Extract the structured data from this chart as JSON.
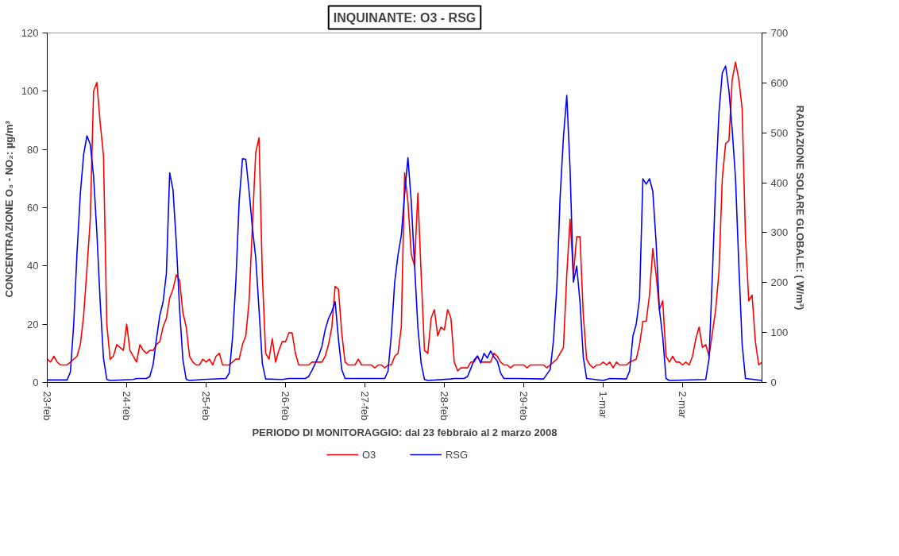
{
  "chart_data": {
    "type": "line",
    "title": "INQUINANTE: O3 - RSG",
    "xlabel": "PERIODO DI MONITORAGGIO: dal 23 febbraio al 2 marzo 2008",
    "ylabel": "CONCENTRAZIONE O₃ -  NO₂: µg/m³",
    "y2label": "RADIAZIONE SOLARE GLOBALE: ( W/m³)",
    "xlim": [
      "2008-02-23T00:00",
      "2008-03-03T00:00"
    ],
    "xticks": [
      {
        "value": "2008-02-23",
        "label": "23-feb"
      },
      {
        "value": "2008-02-24",
        "label": "24-feb"
      },
      {
        "value": "2008-02-25",
        "label": "25-feb"
      },
      {
        "value": "2008-02-26",
        "label": "26-feb"
      },
      {
        "value": "2008-02-27",
        "label": "27-feb"
      },
      {
        "value": "2008-02-28",
        "label": "28-feb"
      },
      {
        "value": "2008-02-29",
        "label": "29-feb"
      },
      {
        "value": "2008-03-01",
        "label": "1-mar"
      },
      {
        "value": "2008-03-02",
        "label": "2-mar"
      }
    ],
    "ylim": [
      0,
      120
    ],
    "yticks": [
      0,
      20,
      40,
      60,
      80,
      100,
      120
    ],
    "y2lim": [
      0,
      700
    ],
    "y2ticks": [
      0,
      100,
      200,
      300,
      400,
      500,
      600,
      700
    ],
    "grid": false,
    "legend": "bottom",
    "marker": "none",
    "line_style": "solid",
    "series": [
      {
        "name": "O3",
        "color": "#ff0000",
        "x": [
          "2008-02-23T00:00",
          "2008-02-23T01:00",
          "2008-02-23T02:00",
          "2008-02-23T03:00",
          "2008-02-23T04:00",
          "2008-02-23T06:00",
          "2008-02-23T07:00",
          "2008-02-23T09:00",
          "2008-02-23T10:00",
          "2008-02-23T11:00",
          "2008-02-23T12:00",
          "2008-02-23T13:00",
          "2008-02-23T14:00",
          "2008-02-23T15:00",
          "2008-02-23T16:00",
          "2008-02-23T17:00",
          "2008-02-23T18:00",
          "2008-02-23T19:00",
          "2008-02-23T20:00",
          "2008-02-23T21:00",
          "2008-02-23T23:00",
          "2008-02-24T00:00",
          "2008-02-24T01:00",
          "2008-02-24T03:00",
          "2008-02-24T04:00",
          "2008-02-24T05:00",
          "2008-02-24T06:00",
          "2008-02-24T07:00",
          "2008-02-24T08:00",
          "2008-02-24T09:00",
          "2008-02-24T10:00",
          "2008-02-24T11:00",
          "2008-02-24T12:00",
          "2008-02-24T13:00",
          "2008-02-24T14:00",
          "2008-02-24T15:00",
          "2008-02-24T16:00",
          "2008-02-24T17:00",
          "2008-02-24T18:00",
          "2008-02-24T19:00",
          "2008-02-24T20:00",
          "2008-02-24T21:00",
          "2008-02-24T22:00",
          "2008-02-24T23:00",
          "2008-02-25T00:00",
          "2008-02-25T01:00",
          "2008-02-25T02:00",
          "2008-02-25T03:00",
          "2008-02-25T04:00",
          "2008-02-25T05:00",
          "2008-02-25T07:00",
          "2008-02-25T09:00",
          "2008-02-25T10:00",
          "2008-02-25T11:00",
          "2008-02-25T12:00",
          "2008-02-25T13:00",
          "2008-02-25T14:00",
          "2008-02-25T15:00",
          "2008-02-25T16:00",
          "2008-02-25T17:00",
          "2008-02-25T18:00",
          "2008-02-25T19:00",
          "2008-02-25T20:00",
          "2008-02-25T21:00",
          "2008-02-25T22:00",
          "2008-02-25T23:00",
          "2008-02-26T00:00",
          "2008-02-26T01:00",
          "2008-02-26T02:00",
          "2008-02-26T03:00",
          "2008-02-26T04:00",
          "2008-02-26T07:00",
          "2008-02-26T08:00",
          "2008-02-26T11:00",
          "2008-02-26T12:00",
          "2008-02-26T13:00",
          "2008-02-26T14:00",
          "2008-02-26T15:00",
          "2008-02-26T16:00",
          "2008-02-26T17:00",
          "2008-02-26T18:00",
          "2008-02-26T19:00",
          "2008-02-26T21:00",
          "2008-02-26T22:00",
          "2008-02-26T23:00",
          "2008-02-27T02:00",
          "2008-02-27T03:00",
          "2008-02-27T04:00",
          "2008-02-27T05:00",
          "2008-02-27T06:00",
          "2008-02-27T07:00",
          "2008-02-27T08:00",
          "2008-02-27T09:00",
          "2008-02-27T10:00",
          "2008-02-27T11:00",
          "2008-02-27T12:00",
          "2008-02-27T13:00",
          "2008-02-27T14:00",
          "2008-02-27T15:00",
          "2008-02-27T16:00",
          "2008-02-27T17:00",
          "2008-02-27T18:00",
          "2008-02-27T19:00",
          "2008-02-27T20:00",
          "2008-02-27T21:00",
          "2008-02-27T22:00",
          "2008-02-27T23:00",
          "2008-02-28T00:00",
          "2008-02-28T01:00",
          "2008-02-28T02:00",
          "2008-02-28T03:00",
          "2008-02-28T04:00",
          "2008-02-28T05:00",
          "2008-02-28T07:00",
          "2008-02-28T08:00",
          "2008-02-28T09:00",
          "2008-02-28T10:00",
          "2008-02-28T11:00",
          "2008-02-28T14:00",
          "2008-02-28T15:00",
          "2008-02-28T16:00",
          "2008-02-28T17:00",
          "2008-02-28T18:00",
          "2008-02-28T19:00",
          "2008-02-28T20:00",
          "2008-02-28T21:00",
          "2008-02-28T23:00",
          "2008-02-29T00:00",
          "2008-02-29T01:00",
          "2008-02-29T02:00",
          "2008-02-29T06:00",
          "2008-02-29T07:00",
          "2008-02-29T08:00",
          "2008-02-29T10:00",
          "2008-02-29T11:00",
          "2008-02-29T12:00",
          "2008-02-29T13:00",
          "2008-02-29T14:00",
          "2008-02-29T15:00",
          "2008-02-29T16:00",
          "2008-02-29T17:00",
          "2008-02-29T18:00",
          "2008-02-29T19:00",
          "2008-02-29T20:00",
          "2008-02-29T21:00",
          "2008-02-29T22:00",
          "2008-02-29T23:00",
          "2008-03-01T00:00",
          "2008-03-01T01:00",
          "2008-03-01T02:00",
          "2008-03-01T03:00",
          "2008-03-01T04:00",
          "2008-03-01T05:00",
          "2008-03-01T07:00",
          "2008-03-01T08:00",
          "2008-03-01T10:00",
          "2008-03-01T11:00",
          "2008-03-01T12:00",
          "2008-03-01T13:00",
          "2008-03-01T14:00",
          "2008-03-01T15:00",
          "2008-03-01T16:00",
          "2008-03-01T17:00",
          "2008-03-01T18:00",
          "2008-03-01T19:00",
          "2008-03-01T20:00",
          "2008-03-01T21:00",
          "2008-03-01T22:00",
          "2008-03-01T23:00",
          "2008-03-02T00:00",
          "2008-03-02T01:00",
          "2008-03-02T02:00",
          "2008-03-02T03:00",
          "2008-03-02T04:00",
          "2008-03-02T05:00",
          "2008-03-02T06:00",
          "2008-03-02T07:00",
          "2008-03-02T08:00",
          "2008-03-02T09:00",
          "2008-03-02T10:00",
          "2008-03-02T11:00",
          "2008-03-02T12:00",
          "2008-03-02T13:00",
          "2008-03-02T14:00",
          "2008-03-02T15:00",
          "2008-03-02T16:00",
          "2008-03-02T17:00",
          "2008-03-02T18:00",
          "2008-03-02T19:00",
          "2008-03-02T20:00",
          "2008-03-02T21:00",
          "2008-03-02T22:00",
          "2008-03-02T23:00",
          "2008-03-03T00:00"
        ],
        "values": [
          8,
          7,
          9,
          7,
          6,
          6,
          7,
          9,
          13,
          23,
          39,
          56,
          100,
          103,
          89,
          78,
          20,
          8,
          9,
          13,
          11,
          20,
          11,
          7,
          13,
          11,
          10,
          11,
          11,
          13,
          14,
          19,
          22,
          29,
          32,
          37,
          35,
          24,
          19,
          9,
          7,
          6,
          6,
          8,
          7,
          8,
          6,
          9,
          10,
          6,
          6,
          8,
          8,
          13,
          16,
          28,
          54,
          79,
          84,
          37,
          10,
          8,
          15,
          7,
          11,
          14,
          14,
          17,
          17,
          10,
          6,
          6,
          7,
          7,
          9,
          13,
          19,
          33,
          32,
          17,
          7,
          6,
          6,
          8,
          6,
          6,
          5,
          6,
          6,
          5,
          6,
          6,
          9,
          10,
          19,
          72,
          62,
          44,
          40,
          65,
          37,
          11,
          10,
          22,
          25,
          16,
          19,
          18,
          25,
          22,
          7,
          4,
          5,
          5,
          7,
          7,
          9,
          7,
          7,
          10,
          9,
          7,
          6,
          6,
          5,
          6,
          6,
          6,
          5,
          6,
          6,
          5,
          6,
          8,
          10,
          12,
          37,
          56,
          37,
          50,
          50,
          23,
          8,
          6,
          5,
          6,
          6,
          7,
          6,
          7,
          5,
          7,
          6,
          6,
          7,
          8,
          13,
          21,
          21,
          30,
          46,
          37,
          25,
          28,
          9,
          7,
          9,
          7,
          7,
          6,
          7,
          6,
          9,
          15,
          19,
          12,
          13,
          9,
          17,
          25,
          38,
          70,
          82,
          83,
          104,
          110,
          104,
          94,
          50,
          28,
          30,
          14,
          6,
          7
        ]
      },
      {
        "name": "RSG",
        "color": "#0000ff",
        "axis": "y2",
        "x": [
          "2008-02-23T00:00",
          "2008-02-23T06:00",
          "2008-02-23T07:00",
          "2008-02-23T08:00",
          "2008-02-23T09:00",
          "2008-02-23T10:00",
          "2008-02-23T11:00",
          "2008-02-23T12:00",
          "2008-02-23T13:00",
          "2008-02-23T14:00",
          "2008-02-23T15:00",
          "2008-02-23T16:00",
          "2008-02-23T17:00",
          "2008-02-23T18:00",
          "2008-02-23T19:00",
          "2008-02-24T02:00",
          "2008-02-24T03:00",
          "2008-02-24T06:00",
          "2008-02-24T07:00",
          "2008-02-24T08:00",
          "2008-02-24T09:00",
          "2008-02-24T10:00",
          "2008-02-24T11:00",
          "2008-02-24T12:00",
          "2008-02-24T13:00",
          "2008-02-24T14:00",
          "2008-02-24T15:00",
          "2008-02-24T16:00",
          "2008-02-24T17:00",
          "2008-02-24T18:00",
          "2008-02-24T19:00",
          "2008-02-24T23:00",
          "2008-02-25T06:00",
          "2008-02-25T07:00",
          "2008-02-25T08:00",
          "2008-02-25T09:00",
          "2008-02-25T10:00",
          "2008-02-25T11:00",
          "2008-02-25T12:00",
          "2008-02-25T13:00",
          "2008-02-25T14:00",
          "2008-02-25T15:00",
          "2008-02-25T16:00",
          "2008-02-25T17:00",
          "2008-02-25T18:00",
          "2008-02-25T23:00",
          "2008-02-26T01:00",
          "2008-02-26T06:00",
          "2008-02-26T07:00",
          "2008-02-26T08:00",
          "2008-02-26T09:00",
          "2008-02-26T10:00",
          "2008-02-26T11:00",
          "2008-02-26T12:00",
          "2008-02-26T13:00",
          "2008-02-26T14:00",
          "2008-02-26T15:00",
          "2008-02-26T16:00",
          "2008-02-26T17:00",
          "2008-02-26T18:00",
          "2008-02-27T06:00",
          "2008-02-27T07:00",
          "2008-02-27T08:00",
          "2008-02-27T09:00",
          "2008-02-27T10:00",
          "2008-02-27T11:00",
          "2008-02-27T12:00",
          "2008-02-27T13:00",
          "2008-02-27T14:00",
          "2008-02-27T15:00",
          "2008-02-27T16:00",
          "2008-02-27T17:00",
          "2008-02-27T18:00",
          "2008-02-27T19:00",
          "2008-02-28T02:00",
          "2008-02-28T03:00",
          "2008-02-28T06:00",
          "2008-02-28T07:00",
          "2008-02-28T08:00",
          "2008-02-28T09:00",
          "2008-02-28T10:00",
          "2008-02-28T11:00",
          "2008-02-28T12:00",
          "2008-02-28T13:00",
          "2008-02-28T14:00",
          "2008-02-28T15:00",
          "2008-02-28T16:00",
          "2008-02-28T17:00",
          "2008-02-28T18:00",
          "2008-02-28T22:00",
          "2008-02-29T06:00",
          "2008-02-29T08:00",
          "2008-02-29T09:00",
          "2008-02-29T10:00",
          "2008-02-29T11:00",
          "2008-02-29T12:00",
          "2008-02-29T13:00",
          "2008-02-29T14:00",
          "2008-02-29T15:00",
          "2008-02-29T16:00",
          "2008-02-29T17:00",
          "2008-02-29T18:00",
          "2008-02-29T19:00",
          "2008-03-01T00:00",
          "2008-03-01T02:00",
          "2008-03-01T07:00",
          "2008-03-01T08:00",
          "2008-03-01T09:00",
          "2008-03-01T10:00",
          "2008-03-01T11:00",
          "2008-03-01T12:00",
          "2008-03-01T13:00",
          "2008-03-01T14:00",
          "2008-03-01T15:00",
          "2008-03-01T16:00",
          "2008-03-01T17:00",
          "2008-03-01T18:00",
          "2008-03-01T19:00",
          "2008-03-01T20:00",
          "2008-03-02T07:00",
          "2008-03-02T08:00",
          "2008-03-02T09:00",
          "2008-03-02T10:00",
          "2008-03-02T11:00",
          "2008-03-02T12:00",
          "2008-03-02T13:00",
          "2008-03-02T14:00",
          "2008-03-02T15:00",
          "2008-03-02T16:00",
          "2008-03-02T17:00",
          "2008-03-02T18:00",
          "2008-03-02T19:00",
          "2008-03-03T00:00"
        ],
        "values": [
          5,
          5,
          21,
          117,
          260,
          378,
          457,
          494,
          477,
          413,
          299,
          161,
          48,
          6,
          4,
          6,
          8,
          8,
          12,
          36,
          87,
          134,
          161,
          218,
          420,
          386,
          280,
          146,
          45,
          6,
          4,
          6,
          8,
          19,
          90,
          203,
          363,
          448,
          447,
          383,
          309,
          250,
          146,
          38,
          7,
          6,
          8,
          8,
          12,
          24,
          38,
          53,
          72,
          106,
          128,
          142,
          162,
          87,
          26,
          8,
          8,
          23,
          97,
          201,
          255,
          295,
          378,
          450,
          363,
          235,
          111,
          38,
          6,
          4,
          7,
          8,
          8,
          12,
          28,
          45,
          53,
          39,
          58,
          49,
          63,
          51,
          43,
          19,
          8,
          8,
          7,
          26,
          85,
          191,
          373,
          492,
          575,
          428,
          201,
          233,
          161,
          50,
          8,
          4,
          8,
          7,
          23,
          93,
          117,
          169,
          408,
          397,
          408,
          383,
          280,
          146,
          91,
          8,
          4,
          6,
          48,
          215,
          398,
          541,
          620,
          634,
          585,
          506,
          408,
          235,
          77,
          8,
          4
        ]
      }
    ]
  }
}
